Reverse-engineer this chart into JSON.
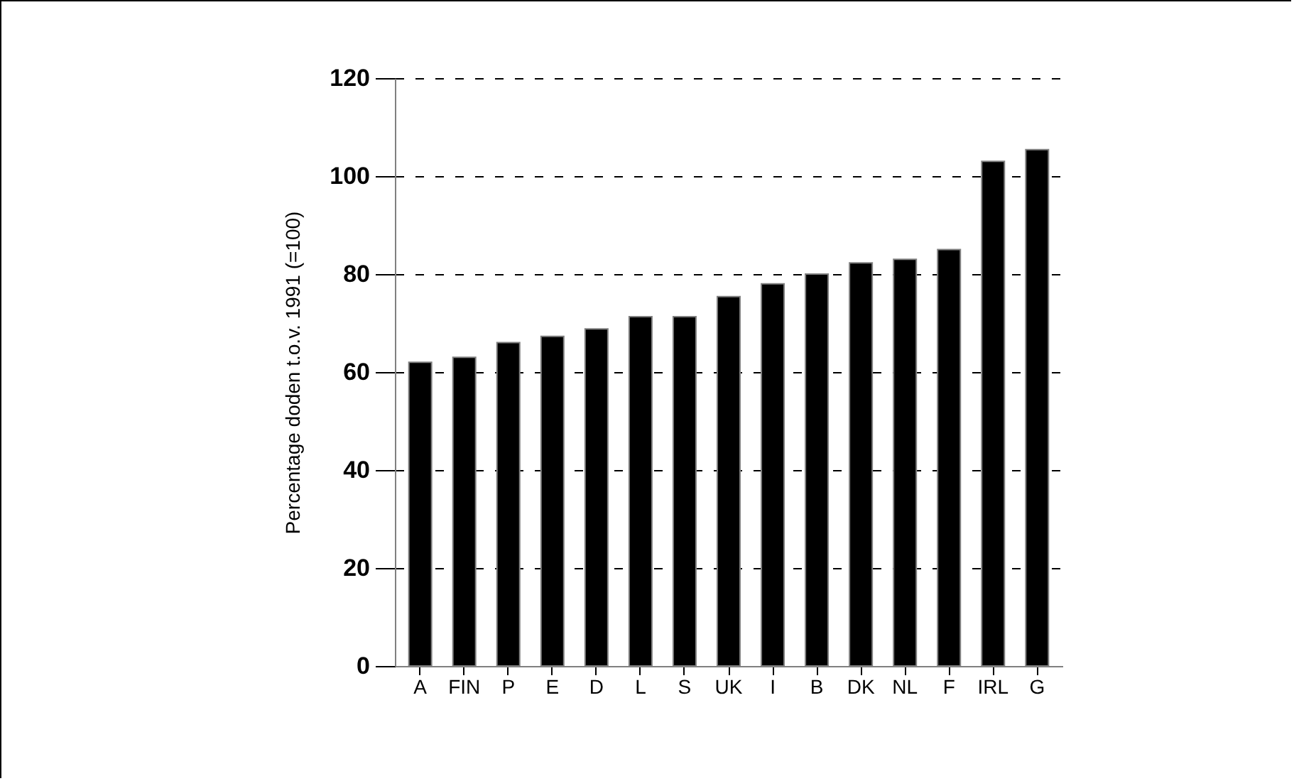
{
  "chart_data": {
    "type": "bar",
    "ylabel": "Percentage doden t.o.v. 1991 (=100)",
    "categories": [
      "A",
      "FIN",
      "P",
      "E",
      "D",
      "L",
      "S",
      "UK",
      "I",
      "B",
      "DK",
      "NL",
      "F",
      "IRL",
      "G"
    ],
    "values": [
      62,
      63,
      66,
      67.3,
      68.8,
      71.3,
      71.3,
      75.4,
      78,
      80,
      82.3,
      83,
      85,
      103,
      105.4
    ],
    "color": "#000000",
    "ylim": [
      0,
      120
    ],
    "yticks": [
      0,
      20,
      40,
      60,
      80,
      100,
      120
    ],
    "grid": "y",
    "line_style": "dashed"
  }
}
